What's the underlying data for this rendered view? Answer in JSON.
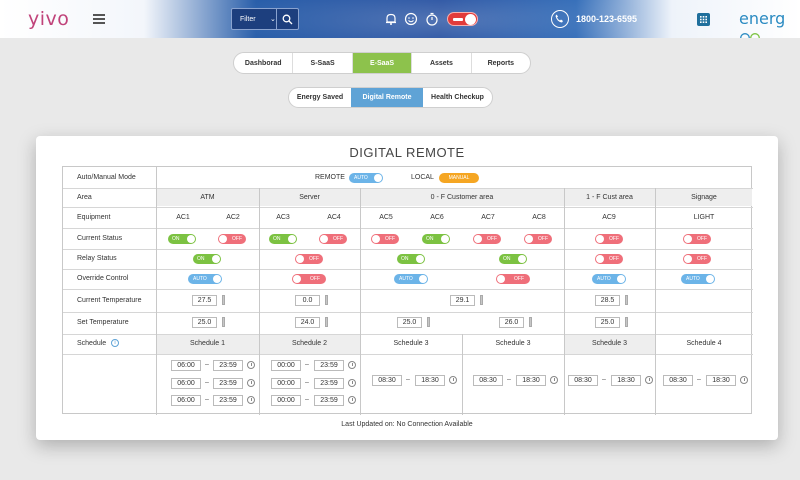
{
  "header": {
    "logo": "yivo",
    "filter_label": "Filter",
    "phone": "1800-123-6595",
    "brand": "energ",
    "icons": [
      "menu-icon",
      "chevron-down-icon",
      "search-icon",
      "bell-icon",
      "smiley-icon",
      "timer-icon",
      "power-toggle",
      "phone-icon",
      "grid-icon"
    ]
  },
  "tabs": [
    "Dashborad",
    "S-SaaS",
    "E-SaaS",
    "Assets",
    "Reports"
  ],
  "active_tab": "E-SaaS",
  "subtabs": [
    "Energy Saved",
    "Digital Remote",
    "Health Checkup"
  ],
  "active_subtab": "Digital Remote",
  "card": {
    "title": "DIGITAL REMOTE",
    "updated": "Last Updated on: No Connection Available"
  },
  "table": {
    "row_labels": {
      "mode": "Auto/Manual Mode",
      "area": "Area",
      "equipment": "Equipment",
      "current_status": "Current Status",
      "relay_status": "Relay Status",
      "override": "Override Control",
      "current_temp": "Current Temperature",
      "set_temp": "Set Temperature",
      "schedule": "Schedule"
    },
    "mode": {
      "remote_label": "REMOTE",
      "remote_toggle": "AUTO",
      "local_label": "LOCAL",
      "local_badge": "MANUAL"
    },
    "areas": [
      "ATM",
      "Server",
      "0 - F  Customer area",
      "1 - F Cust area",
      "Signage"
    ],
    "equipment": [
      "AC1",
      "AC2",
      "AC3",
      "AC4",
      "AC5",
      "AC6",
      "AC7",
      "AC8",
      "AC9",
      "LIGHT"
    ],
    "current_status": [
      "ON",
      "OFF",
      "ON",
      "OFF",
      "OFF",
      "ON",
      "OFF",
      "OFF",
      "OFF",
      "OFF"
    ],
    "relay_status": [
      "ON",
      "OFF",
      "ON",
      "ON",
      "OFF",
      "OFF"
    ],
    "override": [
      "AUTO",
      "OFF",
      "AUTO",
      "OFF",
      "AUTO",
      "AUTO"
    ],
    "current_temp": [
      "27.5",
      "0.0",
      "29.1",
      "28.5"
    ],
    "set_temp": [
      "25.0",
      "24.0",
      "25.0",
      "26.0",
      "25.0"
    ],
    "schedules": [
      "Schedule 1",
      "Schedule 2",
      "Schedule 3",
      "Schedule 3",
      "Schedule 3",
      "Schedule 4"
    ],
    "times": {
      "s1": [
        [
          "06:00",
          "23:59"
        ],
        [
          "06:00",
          "23:59"
        ],
        [
          "06:00",
          "23:59"
        ]
      ],
      "s2": [
        [
          "00:00",
          "23:59"
        ],
        [
          "00:00",
          "23:59"
        ],
        [
          "00:00",
          "23:59"
        ]
      ],
      "s3a": [
        "08:30",
        "18:30"
      ],
      "s3b": [
        "08:30",
        "18:30"
      ],
      "s3c": [
        "08:30",
        "18:30"
      ],
      "s4": [
        "08:30",
        "18:30"
      ]
    }
  },
  "colors": {
    "on": "#7cc242",
    "off": "#ef6f7a",
    "auto": "#6cb4e8",
    "manual": "#f5a623",
    "tab_active": "#8dc24c",
    "subtab_active": "#5fa3d6"
  }
}
